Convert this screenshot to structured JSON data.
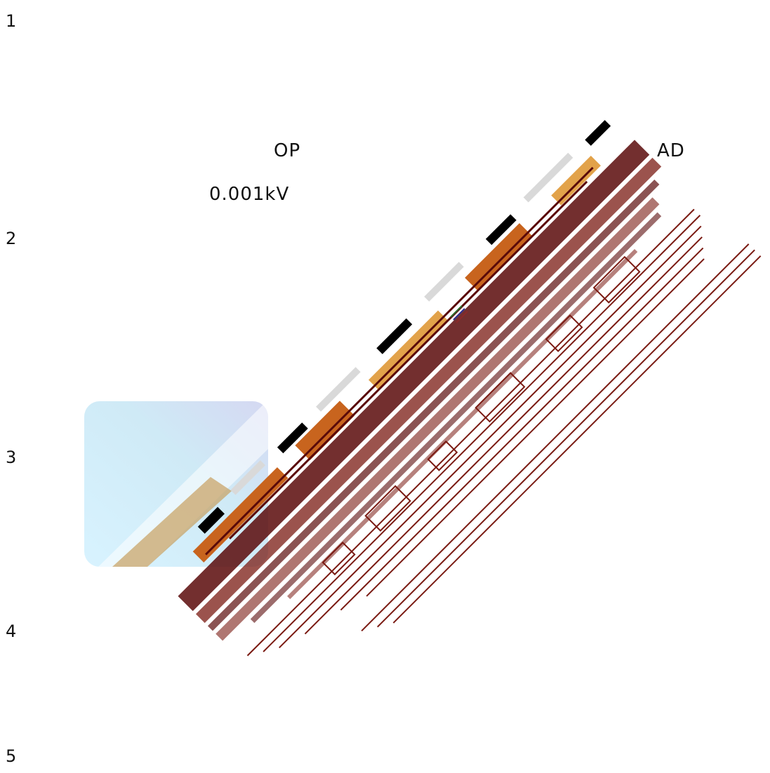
{
  "row_numbers": [
    "1",
    "2",
    "3",
    "4",
    "5"
  ],
  "labels": {
    "op": "OP",
    "ad": "AD",
    "voltage": "0.001kV"
  },
  "colors": {
    "dark_red": "#5a0a0a",
    "maroon": "#7a1a12",
    "orange": "#c8641e",
    "light_orange": "#e2a24a",
    "black": "#000000",
    "light_gray": "#d9d9d9",
    "sky_blue": "#cfeaf6",
    "sky_violet": "#d5d8f2"
  }
}
